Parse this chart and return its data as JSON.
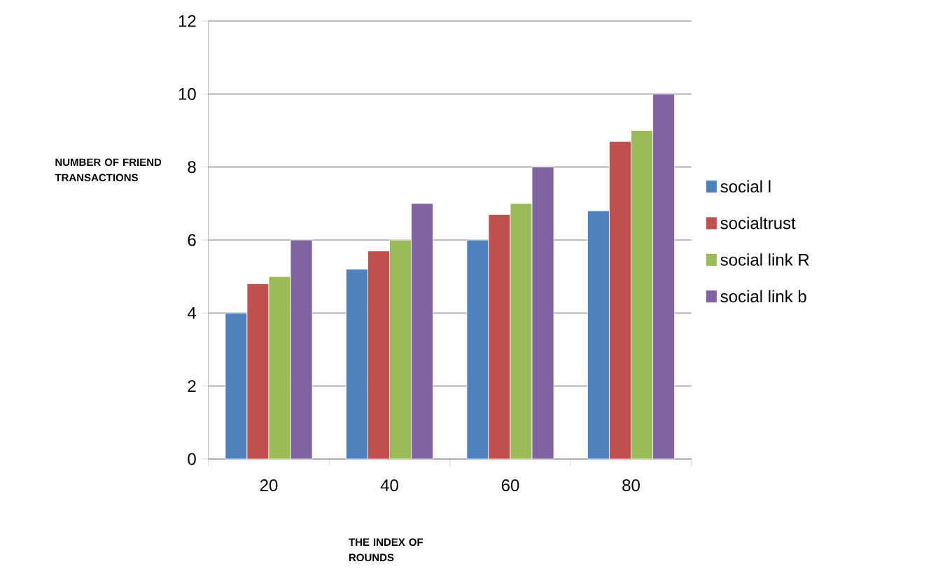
{
  "chart_data": {
    "type": "bar",
    "xlabel": "THE INDEX OF ROUNDS",
    "ylabel": "NUMBER OF FRIEND TRANSACTIONS",
    "categories": [
      "20",
      "40",
      "60",
      "80"
    ],
    "series": [
      {
        "name": "social l",
        "color": "#4f81bd",
        "values": [
          4,
          5.2,
          6,
          6.8
        ]
      },
      {
        "name": "socialtrust",
        "color": "#c0504d",
        "values": [
          4.8,
          5.7,
          6.7,
          8.7
        ]
      },
      {
        "name": "social link R",
        "color": "#9bbb59",
        "values": [
          5,
          6,
          7,
          9
        ]
      },
      {
        "name": "social link b",
        "color": "#8064a2",
        "values": [
          6,
          7,
          8,
          10
        ]
      }
    ],
    "ylim": [
      0,
      12
    ],
    "yticks": [
      0,
      2,
      4,
      6,
      8,
      10,
      12
    ],
    "grid": "y",
    "legend": "right"
  }
}
